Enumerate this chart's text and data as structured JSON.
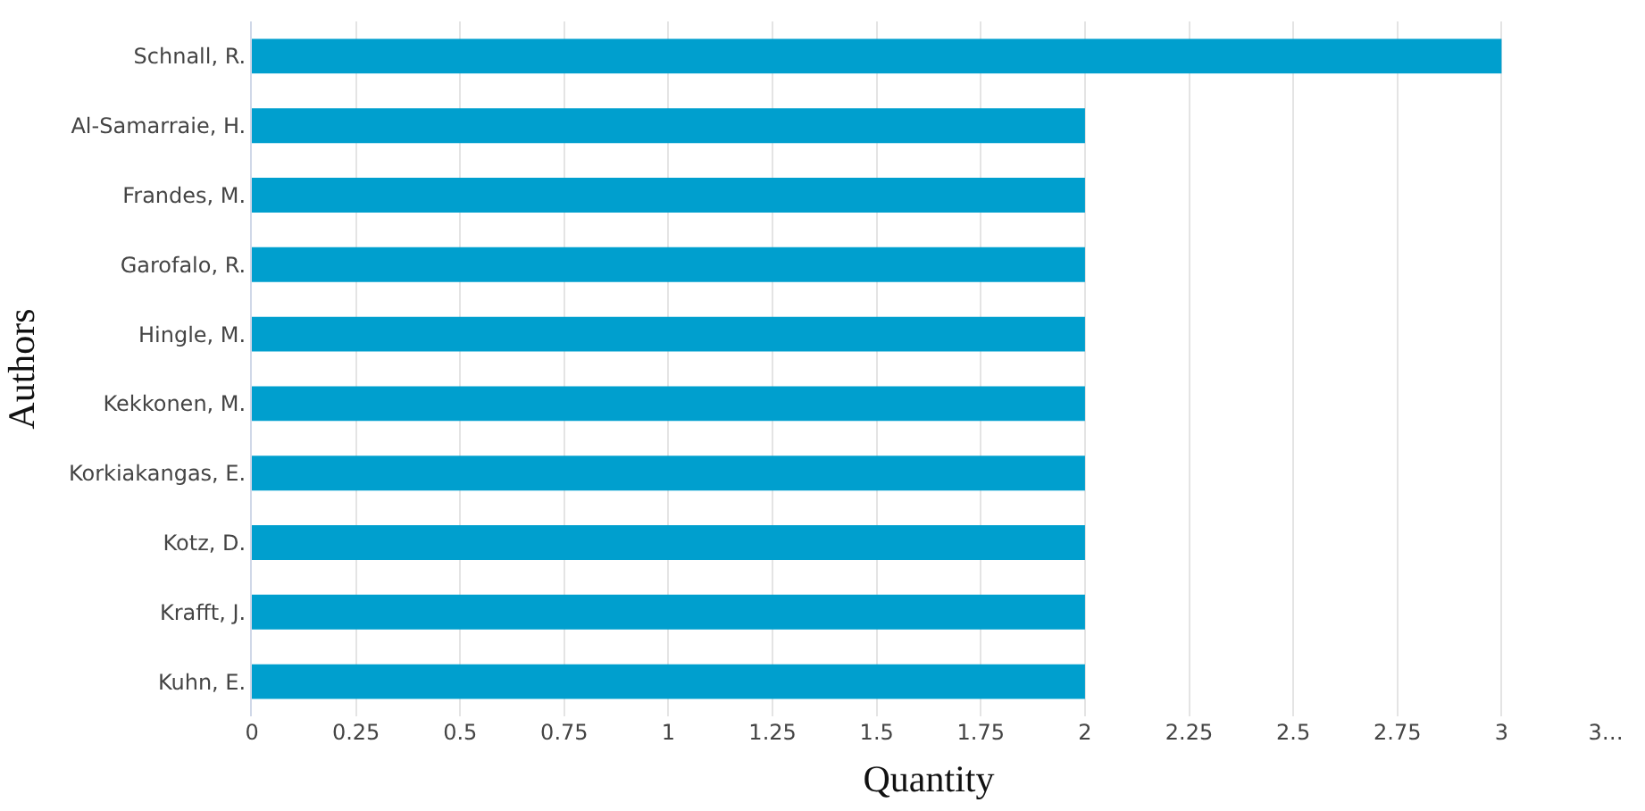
{
  "chart_data": {
    "type": "bar",
    "orientation": "horizontal",
    "xlabel": "Quantity",
    "ylabel": "Authors",
    "categories": [
      "Schnall, R.",
      "Al-Samarraie, H.",
      "Frandes, M.",
      "Garofalo, R.",
      "Hingle, M.",
      "Kekkonen, M.",
      "Korkiakangas, E.",
      "Kotz, D.",
      "Krafft, J.",
      "Kuhn, E."
    ],
    "values": [
      3,
      2,
      2,
      2,
      2,
      2,
      2,
      2,
      2,
      2
    ],
    "color": "#009fce",
    "xlim": [
      0,
      3.25
    ],
    "xticks": [
      0,
      0.25,
      0.5,
      0.75,
      1,
      1.25,
      1.5,
      1.75,
      2,
      2.25,
      2.5,
      2.75,
      3,
      {
        "value": 3.25,
        "label": "3…"
      }
    ],
    "grid": "x"
  }
}
